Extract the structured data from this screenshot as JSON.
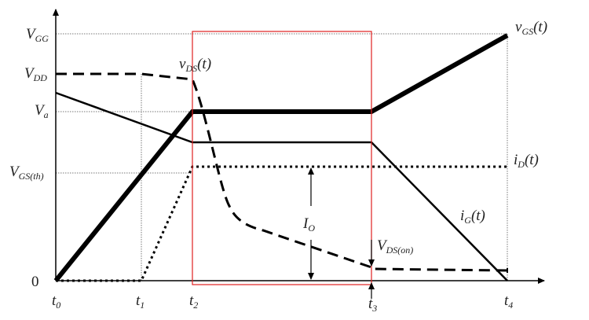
{
  "y_labels": {
    "vgg": {
      "main": "V",
      "sub": "GG"
    },
    "vdd": {
      "main": "V",
      "sub": "DD"
    },
    "va": {
      "main": "V",
      "sub": "a"
    },
    "vgsth": {
      "main": "V",
      "sub": "GS(th)"
    },
    "zero": "0"
  },
  "x_labels": {
    "t0": {
      "main": "t",
      "sub": "0"
    },
    "t1": {
      "main": "t",
      "sub": "1"
    },
    "t2": {
      "main": "t",
      "sub": "2"
    },
    "t3": {
      "main": "t",
      "sub": "3"
    },
    "t4": {
      "main": "t",
      "sub": "4"
    }
  },
  "curve_labels": {
    "vds": {
      "main": "v",
      "sub": "DS",
      "tail": "(t)"
    },
    "vgs": {
      "main": "v",
      "sub": "GS",
      "tail": "(t)"
    },
    "id": {
      "main": "i",
      "sub": "D",
      "tail": "(t)"
    },
    "ig": {
      "main": "i",
      "sub": "G",
      "tail": "(t)"
    }
  },
  "annotations": {
    "io": {
      "main": "I",
      "sub": "O"
    },
    "vdson": {
      "main": "V",
      "sub": "DS(on)"
    }
  },
  "colors": {
    "highlight_box": "#e02020",
    "curves": "#000000"
  }
}
